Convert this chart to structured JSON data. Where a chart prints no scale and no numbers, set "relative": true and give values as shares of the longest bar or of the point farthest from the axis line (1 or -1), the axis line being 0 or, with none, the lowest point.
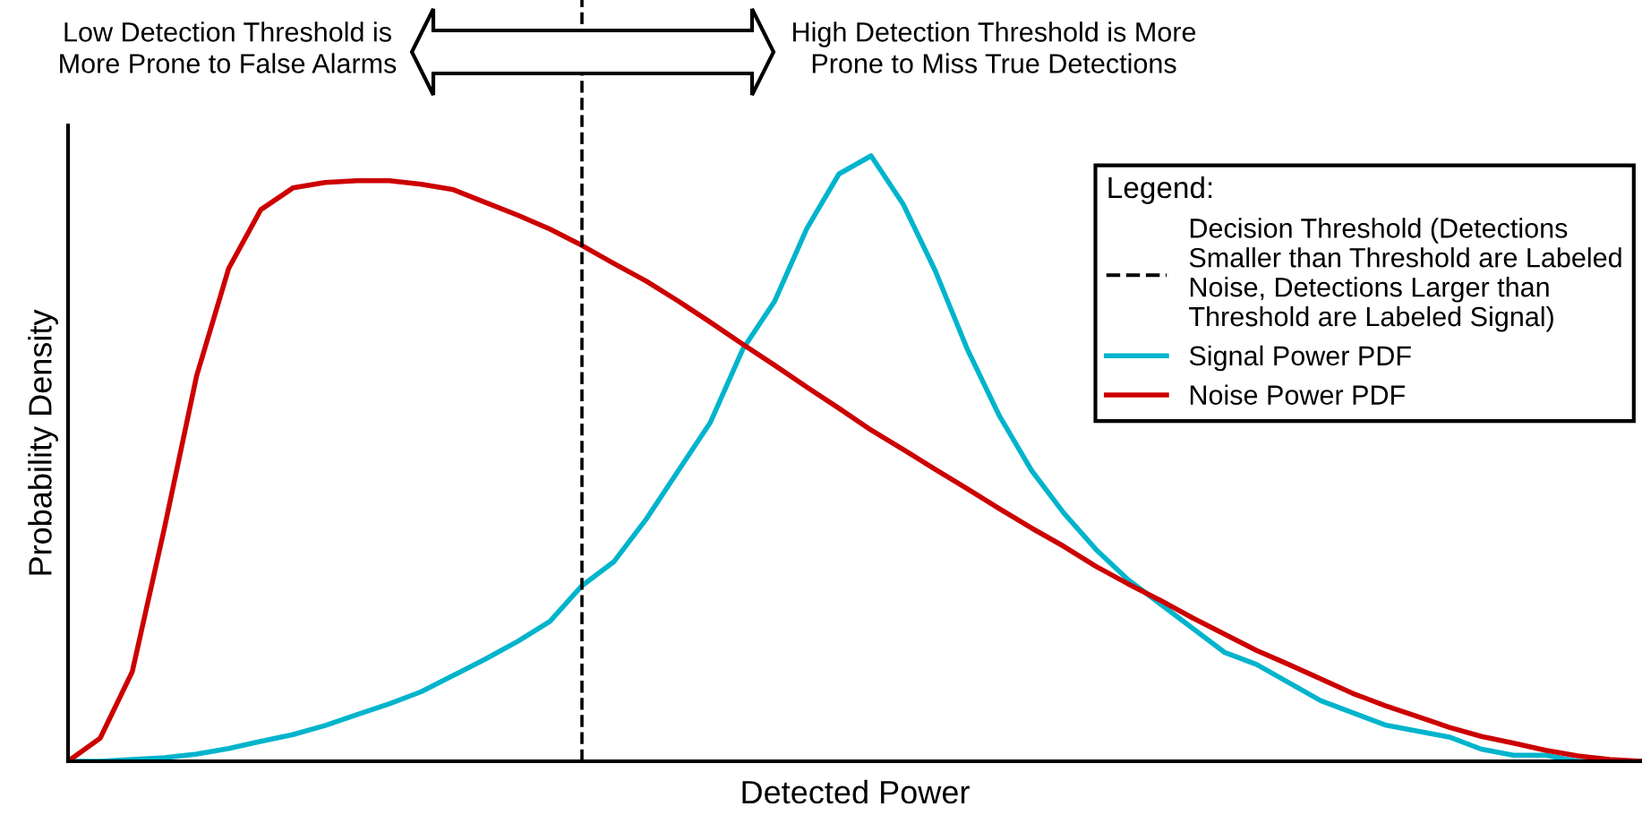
{
  "chart_data": {
    "type": "line",
    "relative": true,
    "xlabel": "Detected Power",
    "ylabel": "Probability Density",
    "legend_title": "Legend:",
    "legend": "top right",
    "grid": false,
    "categories": [
      null,
      null,
      null,
      null,
      null,
      null,
      null,
      null,
      null,
      null,
      null,
      null,
      null,
      null,
      null,
      null,
      null,
      null,
      null,
      null,
      null,
      null,
      null,
      null,
      null,
      null,
      null,
      null,
      null,
      null,
      null,
      null,
      null,
      null,
      null,
      null,
      null,
      null,
      null,
      null,
      null,
      null,
      null,
      null,
      null,
      null,
      null,
      null,
      null,
      null
    ],
    "series": [
      {
        "name": "Signal Power PDF",
        "color": "#00b4cc",
        "values": [
          0,
          0,
          0.003,
          0.006,
          0.012,
          0.021,
          0.033,
          0.044,
          0.059,
          0.077,
          0.095,
          0.115,
          0.142,
          0.169,
          0.198,
          0.231,
          0.29,
          0.33,
          0.4,
          0.48,
          0.56,
          0.68,
          0.76,
          0.88,
          0.97,
          1.0,
          0.92,
          0.81,
          0.68,
          0.57,
          0.48,
          0.41,
          0.35,
          0.3,
          0.26,
          0.22,
          0.18,
          0.16,
          0.13,
          0.1,
          0.08,
          0.06,
          0.05,
          0.04,
          0.02,
          0.01,
          0.01,
          0,
          0,
          0
        ]
      },
      {
        "name": "Noise Power PDF",
        "color": "#cc0000",
        "values": [
          0,
          0.038,
          0.148,
          0.385,
          0.636,
          0.814,
          0.911,
          0.947,
          0.956,
          0.959,
          0.959,
          0.953,
          0.944,
          0.923,
          0.902,
          0.879,
          0.852,
          0.822,
          0.793,
          0.76,
          0.725,
          0.689,
          0.654,
          0.618,
          0.583,
          0.547,
          0.515,
          0.482,
          0.45,
          0.417,
          0.385,
          0.355,
          0.322,
          0.293,
          0.266,
          0.237,
          0.21,
          0.183,
          0.16,
          0.136,
          0.112,
          0.092,
          0.074,
          0.056,
          0.041,
          0.03,
          0.018,
          0.009,
          0.003,
          0
        ]
      }
    ],
    "ref_lines": [
      {
        "axis": "x",
        "label": "Decision Threshold (Detections\nSmaller than Threshold are Labeled\nNoise, Detections Larger than\nThreshold are Labeled Signal)",
        "color": "#000000",
        "line_style": "dashed"
      }
    ],
    "annotations": [
      "Low Detection Threshold is\nMore Prone to False Alarms",
      "High Detection Threshold is More\nProne to Miss True Detections"
    ]
  }
}
